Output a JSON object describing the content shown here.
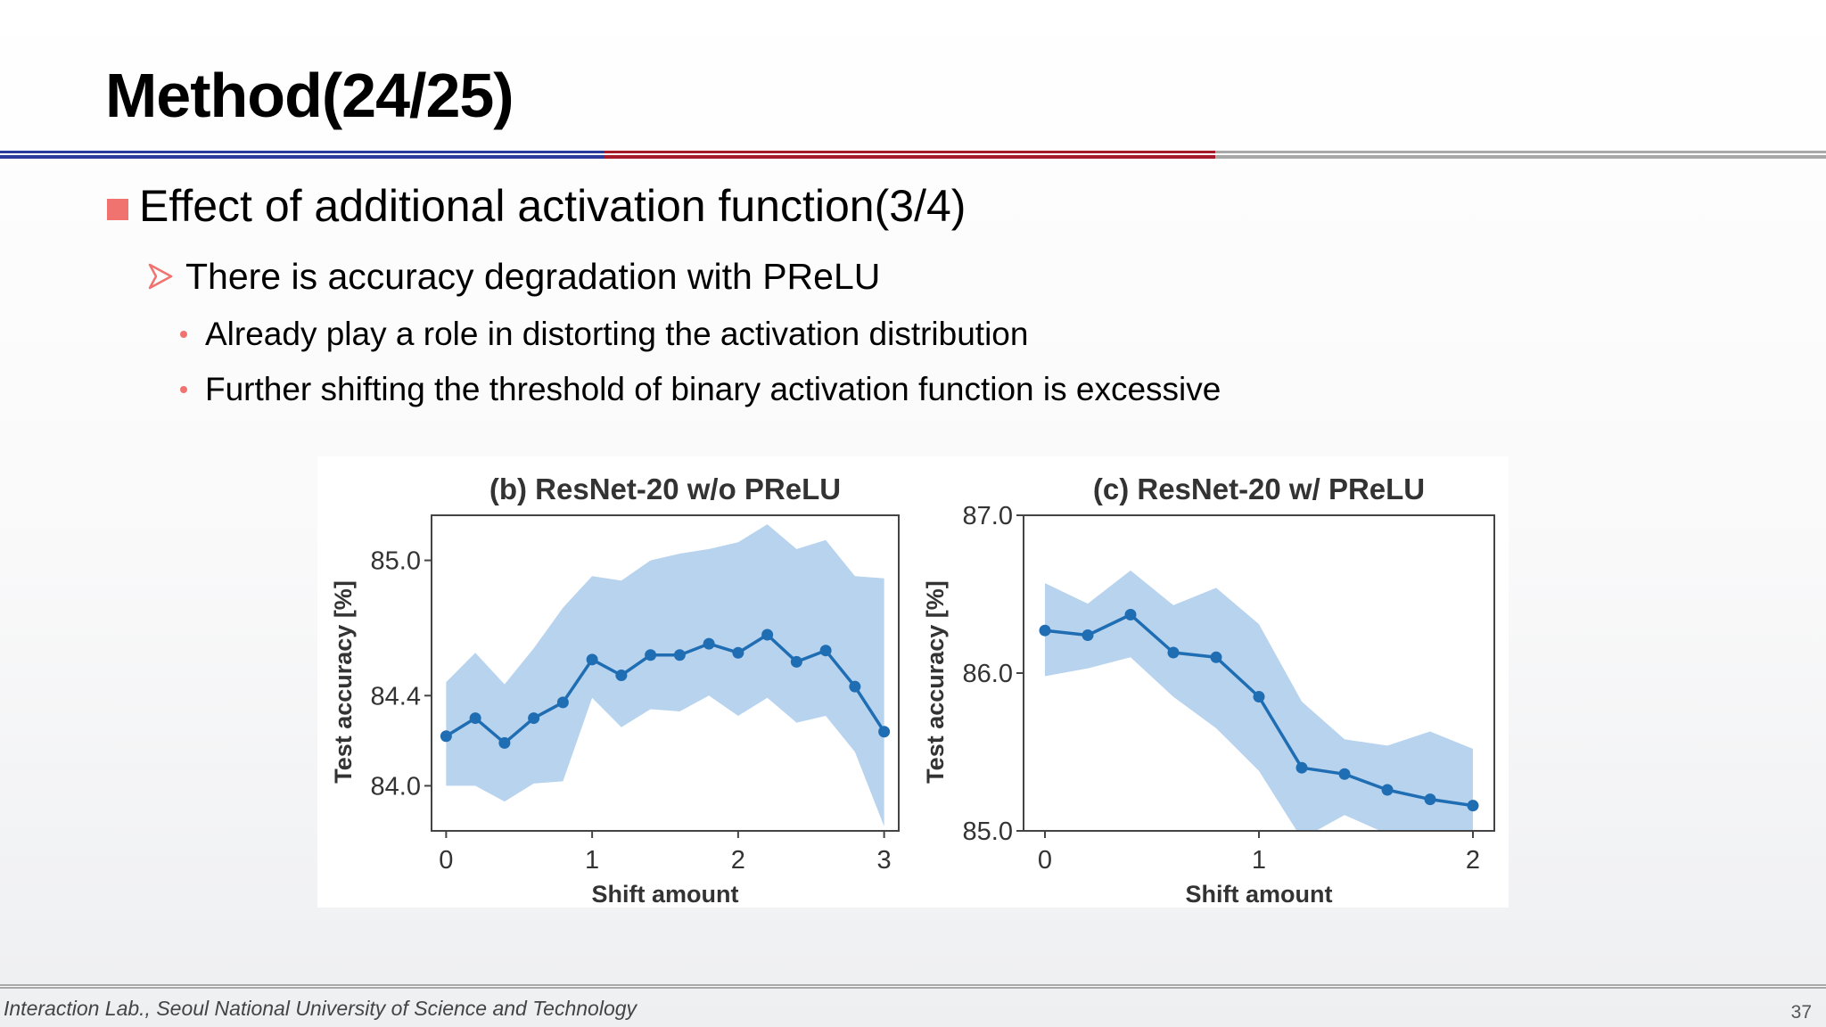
{
  "slide": {
    "title": "Method(24/25)",
    "bullet1": "Effect of additional activation function(3/4)",
    "bullet2": "There is accuracy degradation with PReLU",
    "sub1": "Already play a role in distorting the activation distribution",
    "sub2": "Further shifting the threshold of binary activation function is excessive",
    "footer": "Interaction Lab., Seoul National University of Science and Technology",
    "page_number": "37"
  },
  "colors": {
    "line": "#1f6db3",
    "band": "#b8d3ee",
    "bullet_square": "#f0736f",
    "rule_blue": "#2b3a9c",
    "rule_red": "#a51b2c"
  },
  "chart_data": [
    {
      "type": "line",
      "title": "(b) ResNet-20 w/o PReLU",
      "xlabel": "Shift amount",
      "ylabel": "Test accuracy [%]",
      "xlim": [
        -0.1,
        3.1
      ],
      "ylim": [
        83.8,
        85.2
      ],
      "xticks": [
        0,
        1,
        2,
        3
      ],
      "xtick_labels": [
        "0",
        "1",
        "2",
        "3"
      ],
      "yticks": [
        84.0,
        84.4,
        85.0
      ],
      "ytick_labels": [
        "84.0",
        "84.4",
        "85.0"
      ],
      "x": [
        0,
        0.2,
        0.4,
        0.6,
        0.8,
        1.0,
        1.2,
        1.4,
        1.6,
        1.8,
        2.0,
        2.2,
        2.4,
        2.6,
        2.8,
        3.0
      ],
      "series": [
        {
          "values": [
            84.22,
            84.3,
            84.19,
            84.3,
            84.37,
            84.56,
            84.49,
            84.58,
            84.58,
            84.63,
            84.59,
            84.67,
            84.55,
            84.6,
            84.44,
            84.24
          ],
          "lower": [
            84.0,
            84.0,
            83.93,
            84.01,
            84.02,
            84.39,
            84.26,
            84.34,
            84.33,
            84.4,
            84.31,
            84.39,
            84.28,
            84.31,
            84.15,
            83.82
          ],
          "upper": [
            84.46,
            84.59,
            84.45,
            84.61,
            84.79,
            84.93,
            84.91,
            85.0,
            85.03,
            85.05,
            85.08,
            85.16,
            85.05,
            85.09,
            84.93,
            84.92
          ]
        }
      ]
    },
    {
      "type": "line",
      "title": "(c) ResNet-20 w/ PReLU",
      "xlabel": "Shift amount",
      "ylabel": "Test accuracy [%]",
      "xlim": [
        -0.1,
        2.1
      ],
      "ylim": [
        85.0,
        87.0
      ],
      "xticks": [
        0,
        1,
        2
      ],
      "xtick_labels": [
        "0",
        "1",
        "2"
      ],
      "yticks": [
        85.0,
        86.0,
        87.0
      ],
      "ytick_labels": [
        "85.0",
        "86.0",
        "87.0"
      ],
      "x": [
        0,
        0.2,
        0.4,
        0.6,
        0.8,
        1.0,
        1.2,
        1.4,
        1.6,
        1.8,
        2.0
      ],
      "series": [
        {
          "values": [
            86.27,
            86.24,
            86.37,
            86.13,
            86.1,
            85.85,
            85.4,
            85.36,
            85.26,
            85.2,
            85.16
          ],
          "lower": [
            85.98,
            86.03,
            86.1,
            85.85,
            85.65,
            85.38,
            84.95,
            85.1,
            84.98,
            84.92,
            84.9
          ],
          "upper": [
            86.57,
            86.44,
            86.65,
            86.43,
            86.54,
            86.31,
            85.82,
            85.58,
            85.54,
            85.63,
            85.52
          ]
        }
      ]
    }
  ]
}
